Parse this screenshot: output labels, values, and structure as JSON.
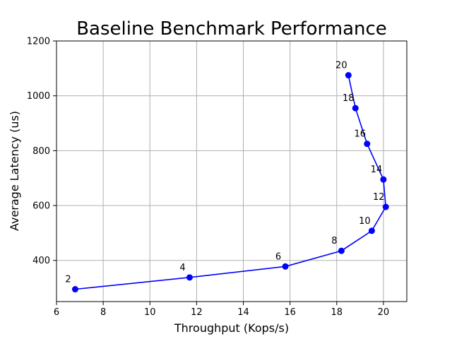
{
  "chart_data": {
    "type": "line",
    "title": "Baseline Benchmark Performance",
    "xlabel": "Throughput (Kops/s)",
    "ylabel": "Average Latency (us)",
    "xlim": [
      6,
      21
    ],
    "ylim": [
      250,
      1200
    ],
    "xticks": [
      6,
      8,
      10,
      12,
      14,
      16,
      18,
      20
    ],
    "yticks": [
      400,
      600,
      800,
      1000,
      1200
    ],
    "grid": true,
    "colors": {
      "series": "#0000ff",
      "grid": "#b0b0b0"
    },
    "series": [
      {
        "points": [
          {
            "x": 6.8,
            "y": 295,
            "label": "2"
          },
          {
            "x": 11.7,
            "y": 338,
            "label": "4"
          },
          {
            "x": 15.8,
            "y": 378,
            "label": "6"
          },
          {
            "x": 18.2,
            "y": 435,
            "label": "8"
          },
          {
            "x": 19.5,
            "y": 508,
            "label": "10"
          },
          {
            "x": 20.1,
            "y": 595,
            "label": "12"
          },
          {
            "x": 20.0,
            "y": 695,
            "label": "14"
          },
          {
            "x": 19.3,
            "y": 825,
            "label": "16"
          },
          {
            "x": 18.8,
            "y": 955,
            "label": "18"
          },
          {
            "x": 18.5,
            "y": 1075,
            "label": "20"
          }
        ]
      }
    ]
  }
}
